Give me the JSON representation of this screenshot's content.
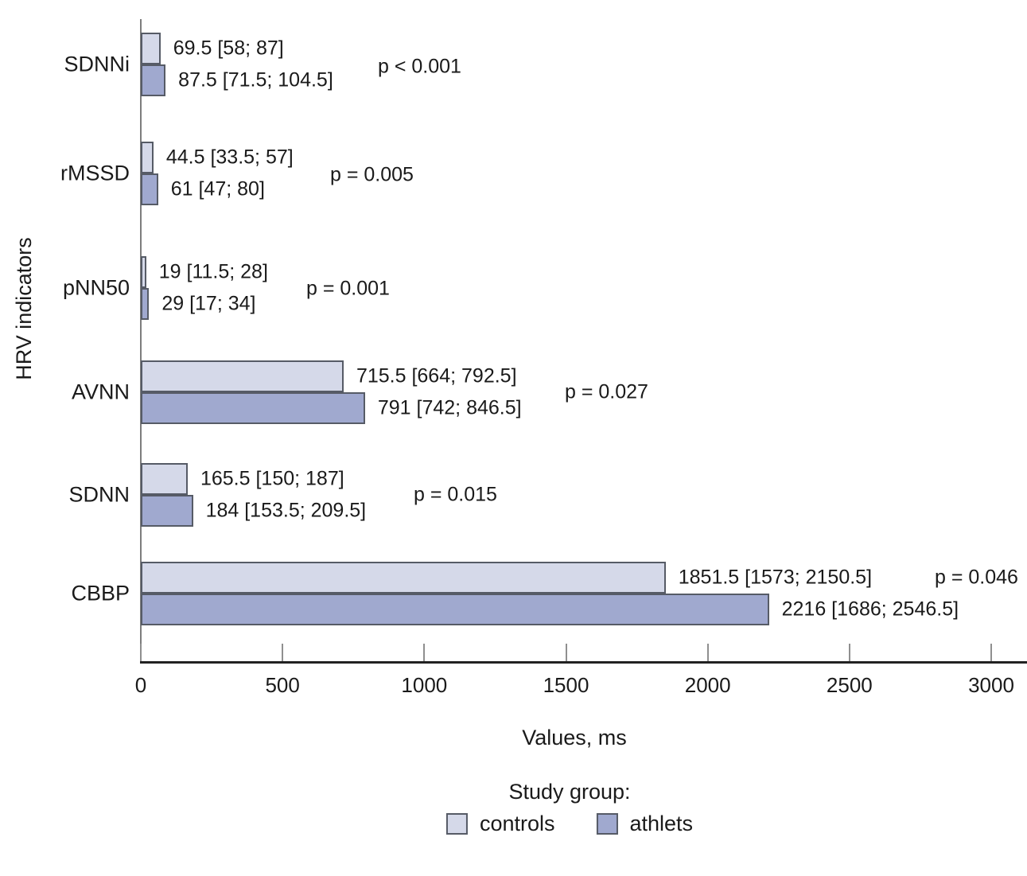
{
  "chart_data": {
    "type": "bar",
    "orientation": "horizontal",
    "xlabel": "Values, ms",
    "ylabel": "HRV indicators",
    "legend_title": "Study group:",
    "legend_position": "bottom",
    "grid": false,
    "xlim": [
      0,
      3128
    ],
    "x_ticks": [
      "0",
      "500",
      "1000",
      "1500",
      "2000",
      "2500",
      "3000"
    ],
    "x_tick_values": [
      0,
      500,
      1000,
      1500,
      2000,
      2500,
      3000
    ],
    "categories": [
      "SDNNi",
      "rMSSD",
      "pNN50",
      "AVNN",
      "SDNN",
      "CBBP"
    ],
    "series": [
      {
        "name": "controls",
        "color": "#d5d9e9",
        "values": [
          69.5,
          44.5,
          19,
          715.5,
          165.5,
          1851.5
        ],
        "bar_labels": [
          "69.5 [58; 87]",
          "44.5 [33.5; 57]",
          "19 [11.5; 28]",
          "715.5 [664; 792.5]",
          "165.5 [150; 187]",
          "1851.5 [1573; 2150.5]"
        ]
      },
      {
        "name": "athlets",
        "color": "#a0a9cf",
        "values": [
          87.5,
          61,
          29,
          791,
          184,
          2216
        ],
        "bar_labels": [
          "87.5 [71.5; 104.5]",
          "61 [47; 80]",
          "29 [17; 34]",
          "791 [742; 846.5]",
          "184 [153.5; 209.5]",
          "2216 [1686; 2546.5]"
        ]
      }
    ],
    "p_values": [
      "p < 0.001",
      "p = 0.005",
      "p = 0.001",
      "p = 0.027",
      "p = 0.015",
      "p = 0.046"
    ],
    "colors": {
      "controls_fill": "#d5d9e9",
      "athlets_fill": "#a0a9cf",
      "bar_border": "#565b66",
      "x_axis_line": "#222222",
      "y_axis_line": "#7d7d7d",
      "tick_line": "#8f8f8f",
      "text": "#1a1a1a",
      "background": "#ffffff"
    }
  }
}
